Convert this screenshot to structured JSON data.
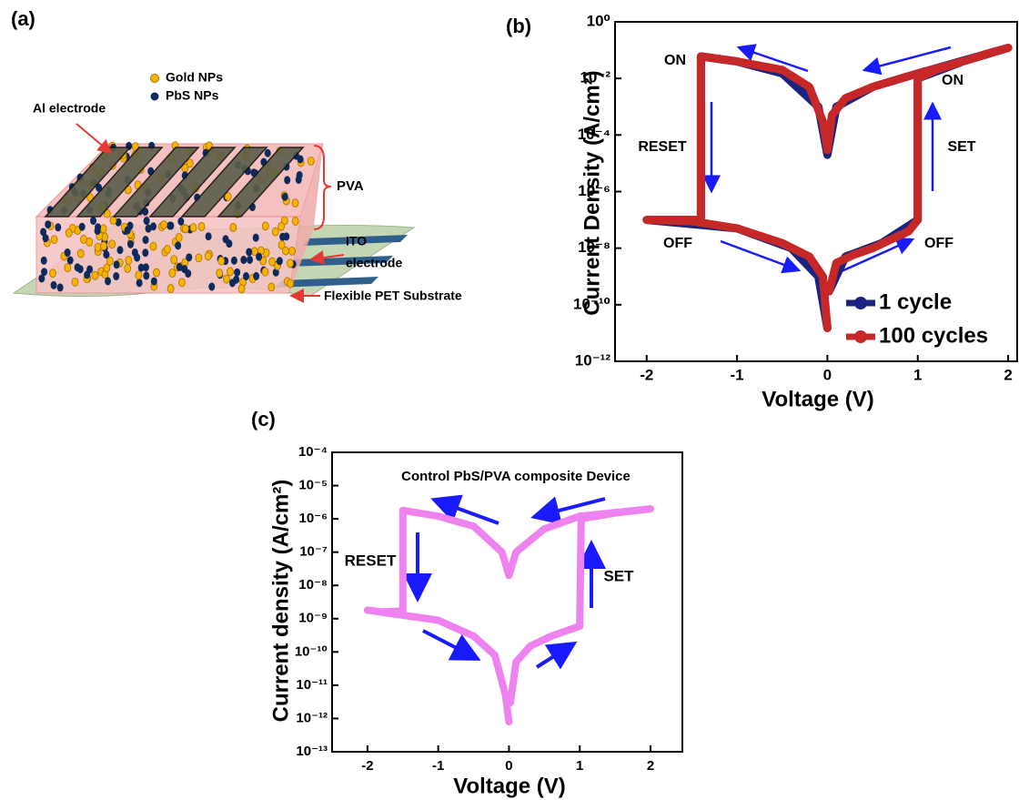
{
  "panel_labels": [
    "(a)",
    "(b)",
    "(c)"
  ],
  "diagram": {
    "labels": [
      "Gold NPs",
      "PbS NPs",
      "Al electrode",
      "PVA",
      "ITO",
      "electrode",
      "Flexible PET Substrate"
    ]
  },
  "chart_data": [
    {
      "type": "line",
      "yscale": "log",
      "xlabel": "Voltage (V)",
      "ylabel": "Current Density (A/cm²)",
      "xlim": [
        -2.35,
        2.1
      ],
      "ylim": [
        1e-12,
        1
      ],
      "xticks": [
        -2,
        -1,
        0,
        1,
        2
      ],
      "yticks": [
        {
          "value": 1e-12,
          "label": "10⁻¹²"
        },
        {
          "value": 1e-10,
          "label": "10⁻¹⁰"
        },
        {
          "value": 1e-08,
          "label": "10⁻⁸"
        },
        {
          "value": 1e-06,
          "label": "10⁻⁶"
        },
        {
          "value": 0.0001,
          "label": "10⁻⁴"
        },
        {
          "value": 0.01,
          "label": "10⁻²"
        },
        {
          "value": 1,
          "label": "10⁰"
        }
      ],
      "legend": "lower right",
      "annotations": [
        "ON",
        "ON",
        "RESET",
        "SET",
        "OFF",
        "OFF"
      ],
      "series": [
        {
          "name": "1 cycle",
          "color": "#1a237e",
          "x": [
            0.02,
            0.2,
            0.6,
            1.0,
            1.0,
            1.5,
            2.0,
            1.0,
            0.5,
            0.1,
            0.0,
            -0.1,
            -0.5,
            -1.0,
            -1.4,
            -1.4,
            -2.0,
            -1.0,
            -0.4,
            -0.1,
            0.0
          ],
          "values": [
            3e-10,
            5e-09,
            1.5e-08,
            1e-07,
            0.01,
            0.04,
            0.12,
            0.015,
            0.005,
            0.001,
            2e-05,
            0.001,
            0.015,
            0.04,
            0.06,
            1e-07,
            1e-07,
            5e-08,
            1e-08,
            1e-09,
            1.5e-11
          ]
        },
        {
          "name": "100 cycles",
          "color": "#c62828",
          "x": [
            0.02,
            0.1,
            0.3,
            0.5,
            0.7,
            0.9,
            1.0,
            1.0,
            1.2,
            1.5,
            1.8,
            2.0,
            1.5,
            1.0,
            0.5,
            0.2,
            0.05,
            0.0,
            -0.05,
            -0.2,
            -0.5,
            -1.0,
            -1.4,
            -1.4,
            -1.7,
            -2.0,
            -1.5,
            -1.0,
            -0.5,
            -0.2,
            -0.05,
            0.0
          ],
          "values": [
            3e-10,
            3e-09,
            6e-09,
            1e-08,
            2e-08,
            4e-08,
            1e-07,
            0.01,
            0.02,
            0.04,
            0.08,
            0.12,
            0.04,
            0.015,
            0.005,
            0.002,
            0.0005,
            3e-05,
            0.0003,
            0.005,
            0.02,
            0.04,
            0.06,
            1e-07,
            1e-07,
            1e-07,
            9e-08,
            5e-08,
            1.5e-08,
            5e-09,
            1e-09,
            1.5e-11
          ]
        }
      ]
    },
    {
      "type": "line",
      "yscale": "log",
      "title": "Control PbS/PVA composite Device",
      "xlabel": "Voltage (V)",
      "ylabel": "Current density (A/cm²)",
      "xlim": [
        -2.5,
        2.45
      ],
      "ylim": [
        1e-13,
        0.0001
      ],
      "xticks": [
        -2,
        -1,
        0,
        1,
        2
      ],
      "yticks": [
        {
          "value": 1e-13,
          "label": "10⁻¹³"
        },
        {
          "value": 1e-12,
          "label": "10⁻¹²"
        },
        {
          "value": 1e-11,
          "label": "10⁻¹¹"
        },
        {
          "value": 1e-10,
          "label": "10⁻¹⁰"
        },
        {
          "value": 1e-09,
          "label": "10⁻⁹"
        },
        {
          "value": 1e-08,
          "label": "10⁻⁸"
        },
        {
          "value": 1e-07,
          "label": "10⁻⁷"
        },
        {
          "value": 1e-06,
          "label": "10⁻⁶"
        },
        {
          "value": 1e-05,
          "label": "10⁻⁵"
        },
        {
          "value": 0.0001,
          "label": "10⁻⁴"
        }
      ],
      "annotations": [
        "RESET",
        "SET"
      ],
      "series": [
        {
          "color": "#ee82ee",
          "x": [
            0.02,
            0.1,
            0.3,
            0.6,
            1.0,
            1.02,
            1.5,
            2.0,
            1.0,
            0.5,
            0.1,
            0.0,
            -0.1,
            -0.5,
            -1.0,
            -1.5,
            -1.5,
            -1.8,
            -2.0,
            -1.0,
            -0.5,
            -0.2,
            -0.05,
            0.0
          ],
          "values": [
            3e-12,
            5e-11,
            1.5e-10,
            3e-10,
            6e-10,
            1e-06,
            1.5e-06,
            2e-06,
            1.2e-06,
            5e-07,
            1e-07,
            2e-08,
            1e-07,
            6e-07,
            1.2e-06,
            1.8e-06,
            1.7e-09,
            1.6e-09,
            1.8e-09,
            9e-10,
            3e-10,
            8e-11,
            5e-12,
            8e-13
          ]
        }
      ]
    }
  ]
}
